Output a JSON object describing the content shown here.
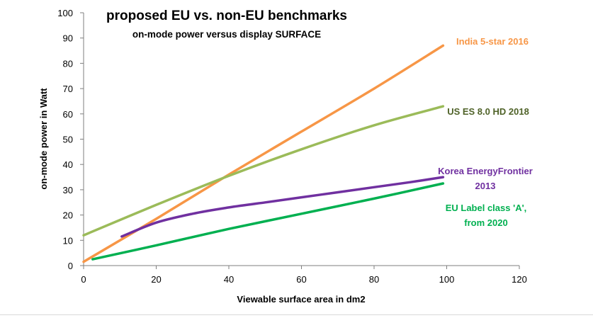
{
  "chart_data": {
    "type": "line",
    "title": "proposed EU vs. non-EU benchmarks",
    "subtitle": "on-mode power versus display SURFACE",
    "xlabel": "Viewable surface area in dm2",
    "ylabel": "on-mode power in Watt",
    "xlim": [
      0,
      120
    ],
    "ylim": [
      0,
      100
    ],
    "xticks": [
      "0",
      "20",
      "40",
      "60",
      "80",
      "100",
      "120"
    ],
    "yticks": [
      "0",
      "10",
      "20",
      "30",
      "40",
      "50",
      "60",
      "70",
      "80",
      "90",
      "100"
    ],
    "grid": false,
    "legend_position": "inline labels at line ends",
    "series": [
      {
        "name": "India 5-star 2016",
        "label_lines": [
          "India 5-star 2016"
        ],
        "color": "#f79646",
        "x": [
          0,
          20,
          40,
          60,
          80,
          99
        ],
        "y": [
          1.5,
          18.5,
          36,
          53,
          70,
          87
        ]
      },
      {
        "name": "US ES 8.0 HD 2018",
        "label_lines": [
          "US ES 8.0 HD 2018"
        ],
        "label_color": "#4f6228",
        "color": "#9bbb59",
        "x": [
          0,
          20,
          40,
          60,
          80,
          99
        ],
        "y": [
          12,
          24,
          35.5,
          46,
          55.5,
          63
        ]
      },
      {
        "name": "Korea EnergyFrontier 2013",
        "label_lines": [
          "Korea EnergyFrontier",
          "2013"
        ],
        "color": "#7030a0",
        "x": [
          10.5,
          20,
          30,
          40,
          50,
          60,
          70,
          80,
          90,
          99
        ],
        "y": [
          11.5,
          17,
          20.5,
          23,
          25,
          27,
          29,
          31,
          33,
          35
        ]
      },
      {
        "name": "EU Label class 'A', from 2020",
        "label_lines": [
          "EU Label class 'A',",
          "from 2020"
        ],
        "color": "#00b050",
        "x": [
          2.5,
          20,
          40,
          60,
          80,
          99
        ],
        "y": [
          2.5,
          8,
          14.5,
          20.5,
          26.5,
          32.5
        ]
      }
    ]
  }
}
